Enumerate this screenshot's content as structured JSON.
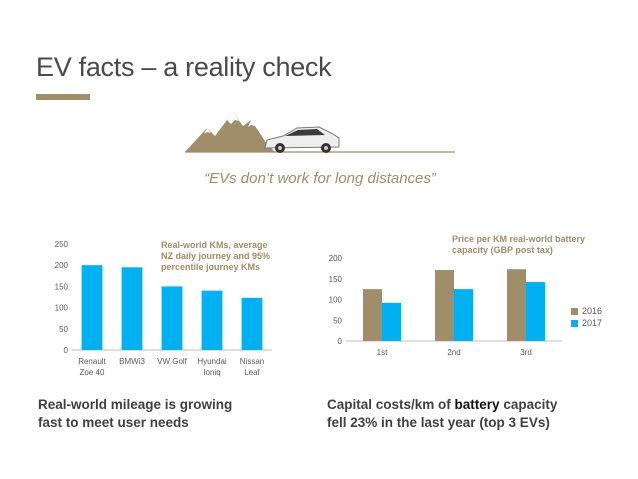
{
  "page": {
    "title": "EV facts – a reality check",
    "quote": "“EVs don’t work for long distances”",
    "accent_color": "#a08d69",
    "illustration_icon": "mountains-car-icon"
  },
  "captions": {
    "left_line1": "Real-world mileage is growing",
    "left_line2": "fast to meet user needs",
    "right_prefix": "Capital costs/km of ",
    "right_emph": "battery",
    "right_suffix": " capacity",
    "right_line2": "fell 23% in the last year (top 3 EVs)"
  },
  "chart_data": [
    {
      "type": "bar",
      "categories": [
        [
          "Renault",
          "Zoe 40"
        ],
        [
          "BMWi3"
        ],
        [
          "VW Golf"
        ],
        [
          "Hyundai",
          "Ioniq"
        ],
        [
          "Nissan",
          "Leaf"
        ]
      ],
      "values": [
        200,
        195,
        150,
        140,
        123
      ],
      "ylim": [
        0,
        250
      ],
      "yticks": [
        0,
        50,
        100,
        150,
        200,
        250
      ],
      "annotation": [
        "Real-world KMs, average",
        "NZ daily journey and 95%",
        "percentile journey KMs"
      ],
      "color": "#00b0f0",
      "grid": false
    },
    {
      "type": "bar",
      "categories": [
        "1st",
        "2nd",
        "3rd"
      ],
      "series": [
        {
          "name": "2016",
          "values": [
            125,
            171,
            173
          ],
          "color": "#a08d69"
        },
        {
          "name": "2017",
          "values": [
            92,
            125,
            142
          ],
          "color": "#00b0f0"
        }
      ],
      "ylim": [
        0,
        200
      ],
      "yticks": [
        0,
        50,
        100,
        150,
        200
      ],
      "annotation": [
        "Price per KM real-world battery",
        "capacity (GBP post tax)"
      ],
      "legend": "right",
      "grid": false
    }
  ]
}
